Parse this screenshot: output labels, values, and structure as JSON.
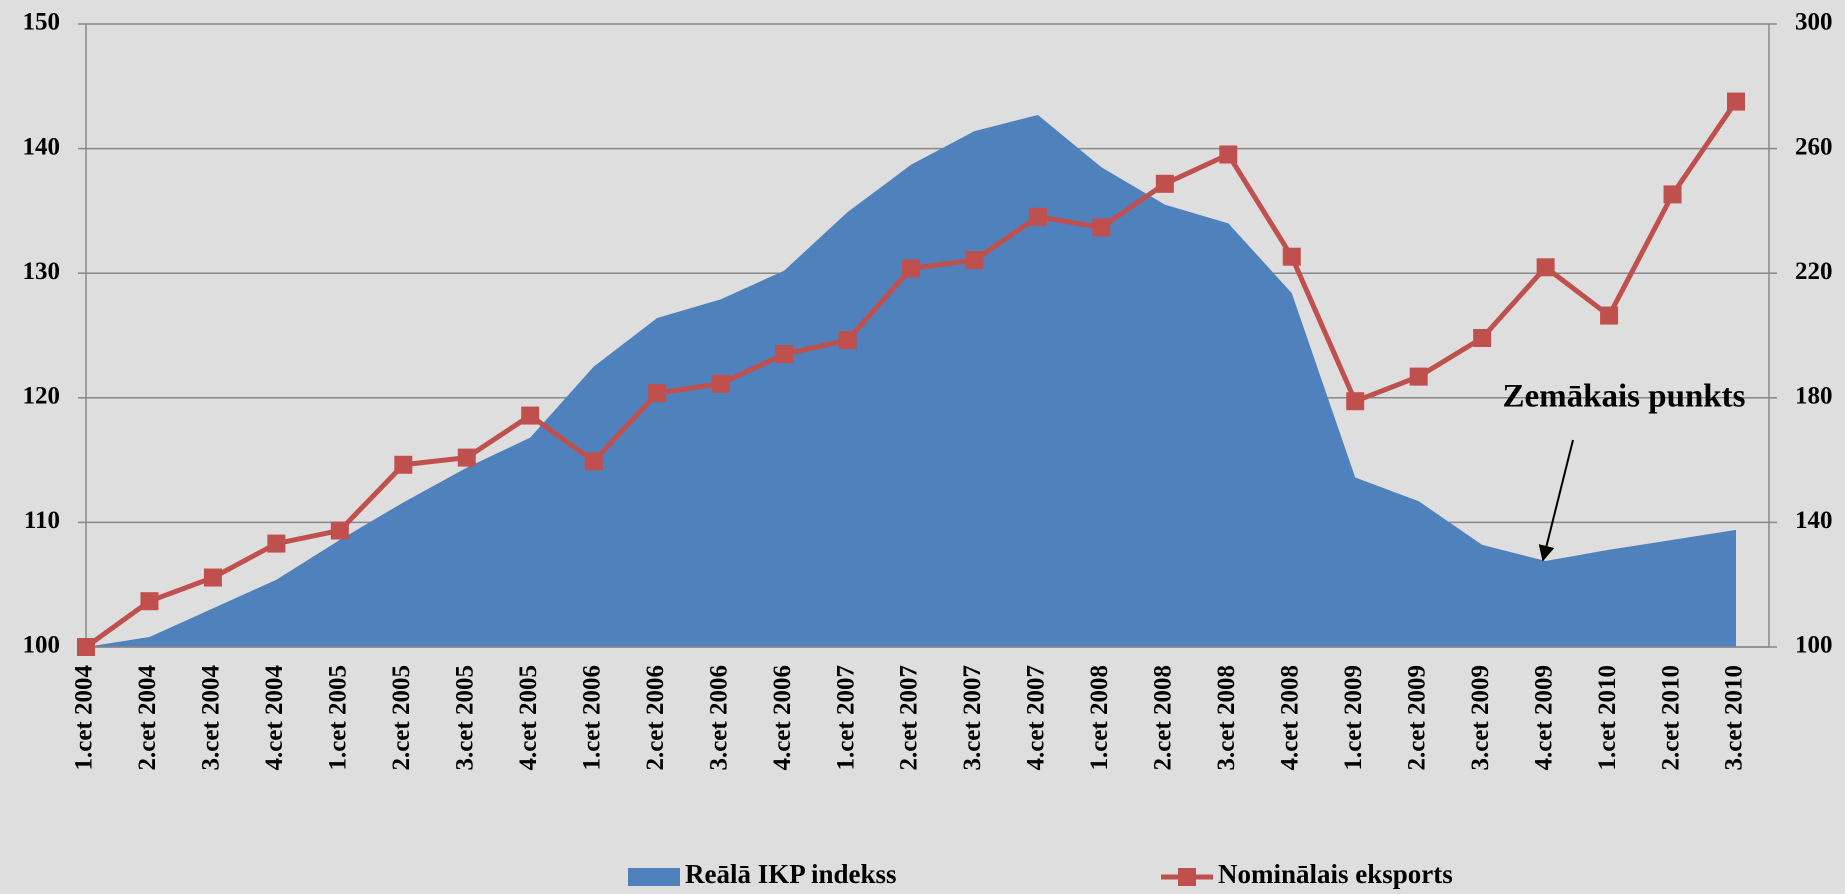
{
  "chart_data": {
    "type": "area-line",
    "categories": [
      "1.cet 2004",
      "2.cet 2004",
      "3.cet 2004",
      "4.cet 2004",
      "1.cet 2005",
      "2.cet 2005",
      "3.cet 2005",
      "4.cet 2005",
      "1.cet 2006",
      "2.cet 2006",
      "3.cet 2006",
      "4.cet 2006",
      "1.cet 2007",
      "2.cet 2007",
      "3.cet 2007",
      "4.cet 2007",
      "1.cet 2008",
      "2.cet 2008",
      "3.cet 2008",
      "4.cet 2008",
      "1.cet 2009",
      "2.cet 2009",
      "3.cet 2009",
      "4.cet 2009",
      "1.cet 2010",
      "2.cet 2010",
      "3.cet 2010"
    ],
    "series": [
      {
        "name": "Reālā IKP indekss",
        "type": "area",
        "color": "#4f81bd",
        "values": [
          100,
          100.8,
          103.1,
          105.4,
          108.6,
          111.6,
          114.4,
          116.8,
          122.5,
          126.4,
          127.9,
          130.2,
          134.9,
          138.7,
          141.4,
          142.7,
          138.5,
          135.5,
          134,
          128.4,
          113.6,
          111.7,
          108.2,
          106.9,
          107.8,
          108.6,
          109.4
        ]
      },
      {
        "name": "Nominālais eksports",
        "type": "line",
        "axis": "y2",
        "color": "#c0504d",
        "values": [
          100,
          114.7,
          122.3,
          133.2,
          137.4,
          158.5,
          160.8,
          174.3,
          159.6,
          181.5,
          184.5,
          194,
          198.5,
          221.5,
          224.2,
          238.1,
          234.7,
          248.7,
          258.1,
          225.3,
          178.9,
          186.8,
          199.2,
          221.9,
          206.4,
          245.3,
          275.1
        ]
      }
    ],
    "ylim": [
      100,
      150
    ],
    "yticks": [
      100,
      110,
      120,
      130,
      140,
      150
    ],
    "y2lim": [
      100,
      300
    ],
    "y2ticks": [
      100,
      140,
      180,
      220,
      260,
      300
    ],
    "grid": true,
    "legend": "bottom",
    "annotation": "Zemākais punkts"
  }
}
